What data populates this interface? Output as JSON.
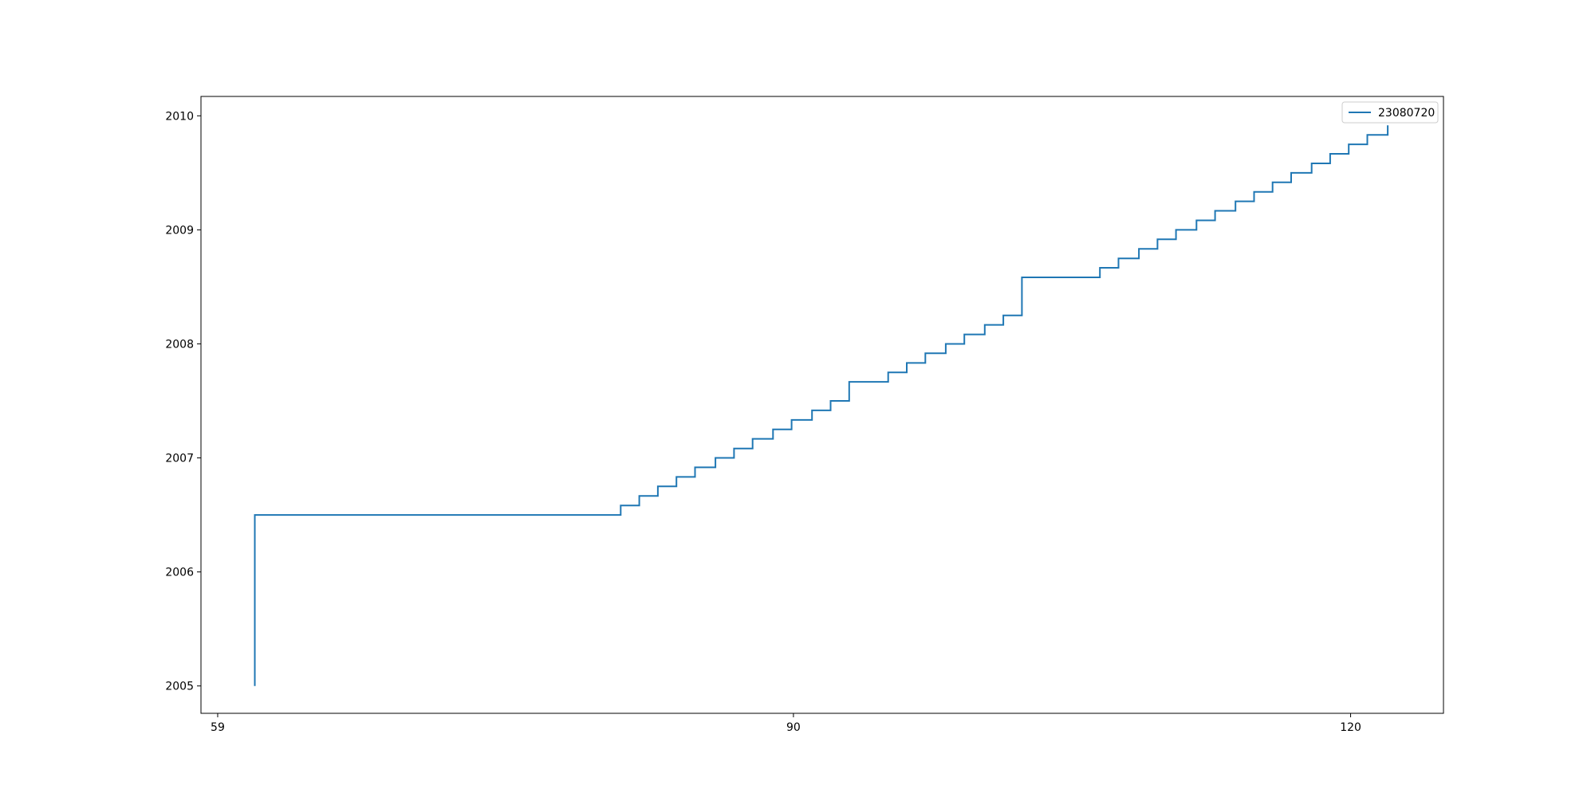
{
  "chart_data": {
    "type": "line",
    "step": true,
    "series": [
      {
        "name": "23080720",
        "color": "#1f77b4",
        "points": [
          [
            61,
            2005.0
          ],
          [
            61,
            2006.5
          ],
          [
            80.7,
            2006.5
          ],
          [
            80.7,
            2006.583
          ],
          [
            81.7,
            2006.583
          ],
          [
            81.7,
            2006.667
          ],
          [
            82.7,
            2006.667
          ],
          [
            82.7,
            2006.75
          ],
          [
            83.7,
            2006.75
          ],
          [
            83.7,
            2006.833
          ],
          [
            84.7,
            2006.833
          ],
          [
            84.7,
            2006.917
          ],
          [
            85.8,
            2006.917
          ],
          [
            85.8,
            2007.0
          ],
          [
            86.8,
            2007.0
          ],
          [
            86.8,
            2007.083
          ],
          [
            87.8,
            2007.083
          ],
          [
            87.8,
            2007.167
          ],
          [
            88.9,
            2007.167
          ],
          [
            88.9,
            2007.25
          ],
          [
            89.9,
            2007.25
          ],
          [
            89.9,
            2007.333
          ],
          [
            91.0,
            2007.333
          ],
          [
            91.0,
            2007.417
          ],
          [
            92.0,
            2007.417
          ],
          [
            92.0,
            2007.5
          ],
          [
            93.0,
            2007.5
          ],
          [
            93.0,
            2007.667
          ],
          [
            95.1,
            2007.667
          ],
          [
            95.1,
            2007.75
          ],
          [
            96.1,
            2007.75
          ],
          [
            96.1,
            2007.833
          ],
          [
            97.1,
            2007.833
          ],
          [
            97.1,
            2007.917
          ],
          [
            98.2,
            2007.917
          ],
          [
            98.2,
            2008.0
          ],
          [
            99.2,
            2008.0
          ],
          [
            99.2,
            2008.083
          ],
          [
            100.3,
            2008.083
          ],
          [
            100.3,
            2008.167
          ],
          [
            101.3,
            2008.167
          ],
          [
            101.3,
            2008.25
          ],
          [
            102.3,
            2008.25
          ],
          [
            102.3,
            2008.583
          ],
          [
            106.5,
            2008.583
          ],
          [
            106.5,
            2008.667
          ],
          [
            107.5,
            2008.667
          ],
          [
            107.5,
            2008.75
          ],
          [
            108.6,
            2008.75
          ],
          [
            108.6,
            2008.833
          ],
          [
            109.6,
            2008.833
          ],
          [
            109.6,
            2008.917
          ],
          [
            110.6,
            2008.917
          ],
          [
            110.6,
            2009.0
          ],
          [
            111.7,
            2009.0
          ],
          [
            111.7,
            2009.083
          ],
          [
            112.7,
            2009.083
          ],
          [
            112.7,
            2009.167
          ],
          [
            113.8,
            2009.167
          ],
          [
            113.8,
            2009.25
          ],
          [
            114.8,
            2009.25
          ],
          [
            114.8,
            2009.333
          ],
          [
            115.8,
            2009.333
          ],
          [
            115.8,
            2009.417
          ],
          [
            116.8,
            2009.417
          ],
          [
            116.8,
            2009.5
          ],
          [
            117.9,
            2009.5
          ],
          [
            117.9,
            2009.583
          ],
          [
            118.9,
            2009.583
          ],
          [
            118.9,
            2009.667
          ],
          [
            119.9,
            2009.667
          ],
          [
            119.9,
            2009.75
          ],
          [
            120.9,
            2009.75
          ],
          [
            120.9,
            2009.833
          ],
          [
            122.0,
            2009.833
          ],
          [
            122.0,
            2009.917
          ]
        ]
      }
    ],
    "xticks": [
      59,
      90,
      120
    ],
    "yticks": [
      2005,
      2006,
      2007,
      2008,
      2009,
      2010
    ],
    "xlim": [
      58.1,
      125.0
    ],
    "ylim": [
      2004.76,
      2010.17
    ],
    "title": "",
    "xlabel": "",
    "ylabel": "",
    "grid": false,
    "legend_position": "top-right"
  }
}
